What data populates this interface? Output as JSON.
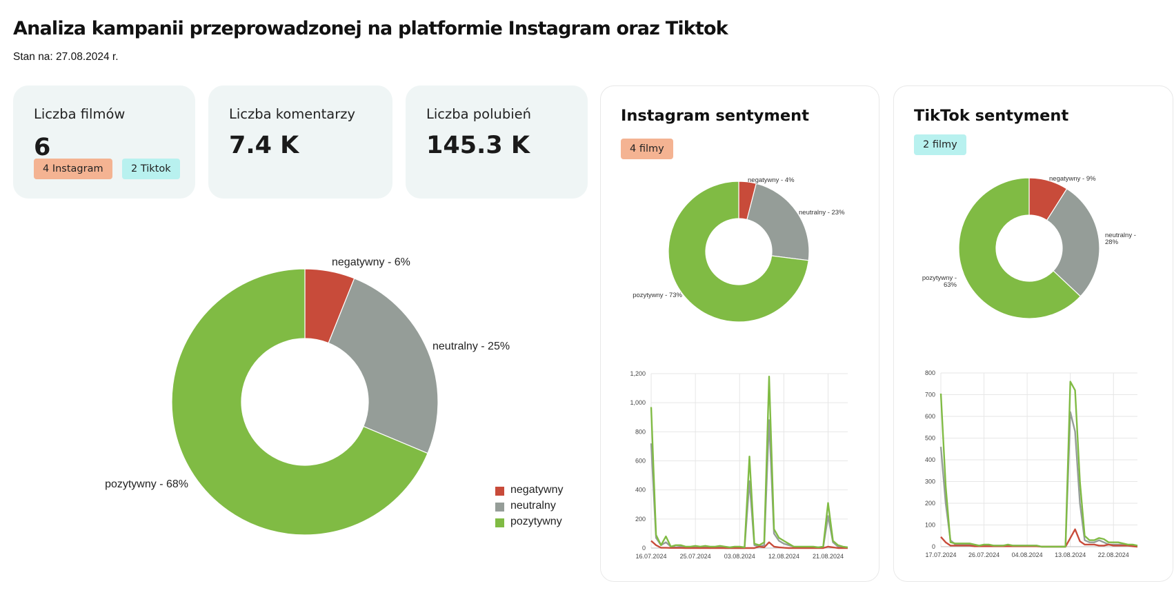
{
  "header": {
    "title": "Analiza kampanii przeprowadzonej na platformie Instagram oraz Tiktok",
    "date": "Stan na: 27.08.2024 r."
  },
  "colors": {
    "negatywny": "#c84b3a",
    "neutralny": "#959d98",
    "pozytywny": "#80bb44",
    "instagram_badge": "#f4b392",
    "tiktok_badge": "#b8f1ef"
  },
  "kpis": {
    "films": {
      "label": "Liczba filmów",
      "value": "6",
      "instagram_badge": "4 Instagram",
      "tiktok_badge": "2 Tiktok"
    },
    "comments": {
      "label": "Liczba komentarzy",
      "value": "7.4 K"
    },
    "likes": {
      "label": "Liczba polubień",
      "value": "145.3 K"
    }
  },
  "legend": {
    "items": [
      "negatywny",
      "neutralny",
      "pozytywny"
    ]
  },
  "instagram": {
    "title": "Instagram sentyment",
    "badge": "4 filmy"
  },
  "tiktok": {
    "title": "TikTok sentyment",
    "badge": "2 filmy"
  },
  "chart_data": [
    {
      "id": "overall",
      "type": "pie",
      "donut": true,
      "labels": [
        "negatywny",
        "neutralny",
        "pozytywny"
      ],
      "values": [
        6,
        25,
        68
      ],
      "slice_labels": [
        "negatywny - 6%",
        "neutralny - 25%",
        "pozytywny - 68%"
      ],
      "legend": "bottom-right"
    },
    {
      "id": "instagram_pie",
      "type": "pie",
      "donut": true,
      "labels": [
        "negatywny",
        "neutralny",
        "pozytywny"
      ],
      "values": [
        4,
        23,
        73
      ],
      "slice_labels": [
        "negatywny - 4%",
        "neutralny - 23%",
        "pozytywny - 73%"
      ]
    },
    {
      "id": "tiktok_pie",
      "type": "pie",
      "donut": true,
      "labels": [
        "negatywny",
        "neutralny",
        "pozytywny"
      ],
      "values": [
        9,
        28,
        63
      ],
      "slice_labels": [
        "negatywny - 9%",
        "neutralny - 28%",
        "pozytywny - 63%"
      ]
    },
    {
      "id": "instagram_line",
      "type": "line",
      "x_start": 0,
      "x_ticks": [
        0,
        9,
        18,
        27,
        36
      ],
      "x_tick_labels": [
        "16.07.2024",
        "25.07.2024",
        "03.08.2024",
        "12.08.2024",
        "21.08.2024"
      ],
      "x_range": [
        0,
        40
      ],
      "ylim": [
        0,
        1200
      ],
      "y_ticks": [
        0,
        200,
        400,
        600,
        800,
        1000,
        1200
      ],
      "y_tick_labels": [
        "0",
        "200",
        "400",
        "600",
        "800",
        "1,000",
        "1,200"
      ],
      "series": [
        {
          "name": "negatywny",
          "x": [
            0,
            1,
            2,
            3,
            4,
            5,
            6,
            7,
            8,
            9,
            10,
            11,
            12,
            13,
            14,
            15,
            16,
            17,
            18,
            19,
            20,
            21,
            22,
            23,
            24,
            25,
            26,
            27,
            28,
            29,
            30,
            31,
            32,
            33,
            34,
            35,
            36,
            37,
            38,
            39,
            40
          ],
          "values": [
            50,
            20,
            2,
            2,
            1,
            1,
            1,
            0,
            0,
            0,
            0,
            0,
            0,
            0,
            0,
            0,
            0,
            0,
            0,
            0,
            0,
            0,
            10,
            5,
            40,
            10,
            5,
            2,
            0,
            0,
            0,
            0,
            0,
            0,
            0,
            0,
            10,
            5,
            0,
            0,
            0
          ]
        },
        {
          "name": "neutralny",
          "x": [
            0,
            1,
            2,
            3,
            4,
            5,
            6,
            7,
            8,
            9,
            10,
            11,
            12,
            13,
            14,
            15,
            16,
            17,
            18,
            19,
            20,
            21,
            22,
            23,
            24,
            25,
            26,
            27,
            28,
            29,
            30,
            31,
            32,
            33,
            34,
            35,
            36,
            37,
            38,
            39,
            40
          ],
          "values": [
            720,
            70,
            20,
            40,
            10,
            5,
            10,
            5,
            0,
            5,
            0,
            5,
            0,
            5,
            5,
            0,
            0,
            0,
            0,
            0,
            460,
            20,
            10,
            20,
            880,
            100,
            50,
            30,
            20,
            10,
            5,
            5,
            5,
            5,
            5,
            5,
            220,
            40,
            10,
            5,
            0
          ]
        },
        {
          "name": "pozytywny",
          "x": [
            0,
            1,
            2,
            3,
            4,
            5,
            6,
            7,
            8,
            9,
            10,
            11,
            12,
            13,
            14,
            15,
            16,
            17,
            18,
            19,
            20,
            21,
            22,
            23,
            24,
            25,
            26,
            27,
            28,
            29,
            30,
            31,
            32,
            33,
            34,
            35,
            36,
            37,
            38,
            39,
            40
          ],
          "values": [
            970,
            90,
            20,
            80,
            10,
            20,
            20,
            10,
            10,
            15,
            10,
            15,
            10,
            10,
            15,
            10,
            5,
            10,
            10,
            5,
            630,
            30,
            20,
            40,
            1180,
            130,
            70,
            50,
            30,
            10,
            10,
            10,
            10,
            10,
            5,
            10,
            310,
            50,
            20,
            10,
            5
          ]
        }
      ]
    },
    {
      "id": "tiktok_line",
      "type": "line",
      "x_ticks": [
        0,
        9,
        18,
        27,
        36
      ],
      "x_tick_labels": [
        "17.07.2024",
        "26.07.2024",
        "04.08.2024",
        "13.08.2024",
        "22.08.2024"
      ],
      "x_range": [
        0,
        41
      ],
      "ylim": [
        0,
        800
      ],
      "y_ticks": [
        0,
        100,
        200,
        300,
        400,
        500,
        600,
        700,
        800
      ],
      "y_tick_labels": [
        "0",
        "100",
        "200",
        "300",
        "400",
        "500",
        "600",
        "700",
        "800"
      ],
      "series": [
        {
          "name": "negatywny",
          "x": [
            0,
            1,
            2,
            3,
            4,
            5,
            6,
            7,
            8,
            9,
            10,
            11,
            12,
            13,
            14,
            15,
            16,
            17,
            18,
            19,
            20,
            21,
            22,
            23,
            24,
            25,
            26,
            27,
            28,
            29,
            30,
            31,
            32,
            33,
            34,
            35,
            36,
            37,
            38,
            39,
            40,
            41
          ],
          "values": [
            45,
            20,
            5,
            5,
            5,
            5,
            5,
            2,
            2,
            2,
            2,
            2,
            2,
            2,
            2,
            2,
            2,
            2,
            2,
            2,
            2,
            0,
            0,
            0,
            0,
            0,
            0,
            40,
            80,
            25,
            10,
            10,
            10,
            5,
            5,
            10,
            5,
            5,
            5,
            5,
            2,
            0
          ]
        },
        {
          "name": "neutralny",
          "x": [
            0,
            1,
            2,
            3,
            4,
            5,
            6,
            7,
            8,
            9,
            10,
            11,
            12,
            13,
            14,
            15,
            16,
            17,
            18,
            19,
            20,
            21,
            22,
            23,
            24,
            25,
            26,
            27,
            28,
            29,
            30,
            31,
            32,
            33,
            34,
            35,
            36,
            37,
            38,
            39,
            40,
            41
          ],
          "values": [
            460,
            200,
            30,
            10,
            10,
            10,
            10,
            5,
            5,
            5,
            5,
            5,
            5,
            5,
            5,
            5,
            5,
            5,
            5,
            5,
            5,
            0,
            0,
            0,
            0,
            0,
            0,
            620,
            530,
            200,
            30,
            20,
            20,
            30,
            20,
            10,
            10,
            10,
            10,
            5,
            5,
            0
          ]
        },
        {
          "name": "pozytywny",
          "x": [
            0,
            1,
            2,
            3,
            4,
            5,
            6,
            7,
            8,
            9,
            10,
            11,
            12,
            13,
            14,
            15,
            16,
            17,
            18,
            19,
            20,
            21,
            22,
            23,
            24,
            25,
            26,
            27,
            28,
            29,
            30,
            31,
            32,
            33,
            34,
            35,
            36,
            37,
            38,
            39,
            40,
            41
          ],
          "values": [
            705,
            280,
            20,
            15,
            15,
            15,
            15,
            10,
            5,
            10,
            10,
            5,
            5,
            5,
            10,
            5,
            5,
            5,
            5,
            5,
            5,
            0,
            0,
            0,
            0,
            0,
            0,
            760,
            720,
            300,
            50,
            30,
            30,
            40,
            35,
            20,
            20,
            20,
            15,
            10,
            10,
            5
          ]
        }
      ]
    }
  ]
}
